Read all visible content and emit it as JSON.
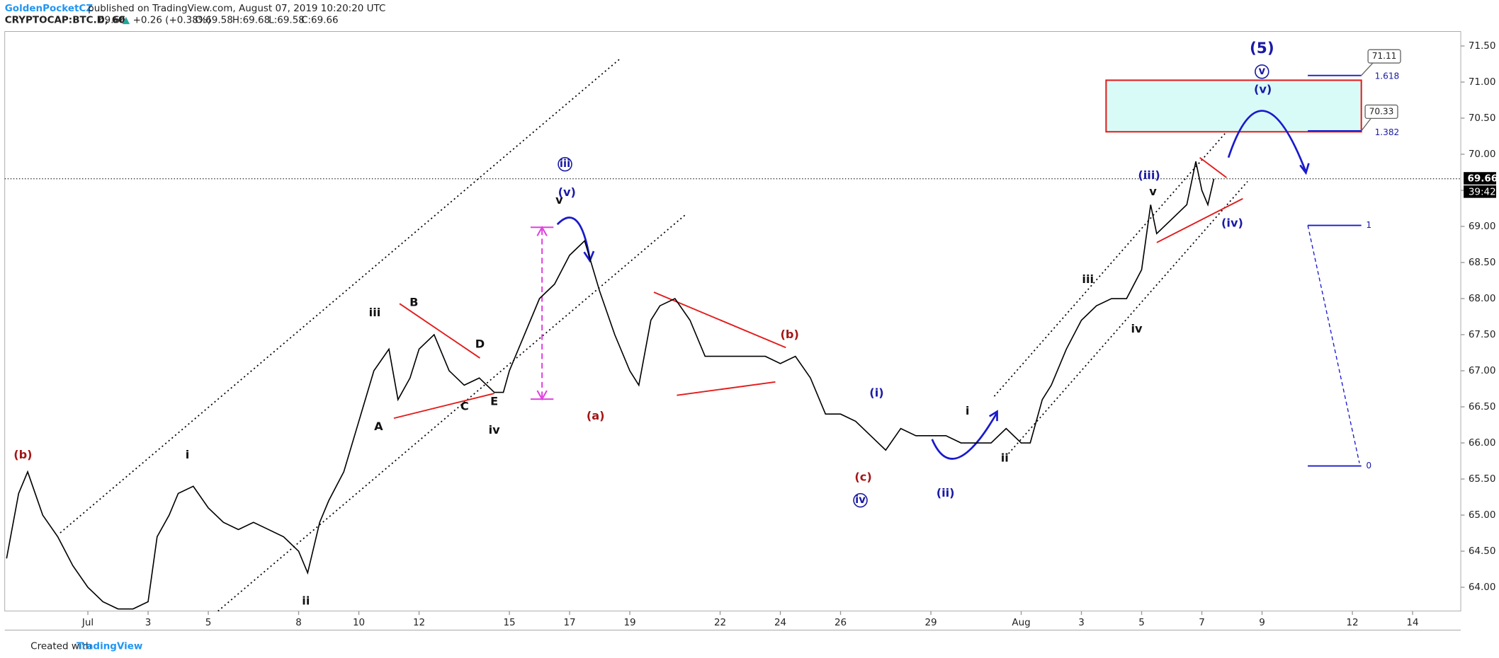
{
  "header": {
    "publisher": "GoldenPocketCZ",
    "published": "published on TradingView.com, August 07, 2019 10:20:20 UTC",
    "symbol": "CRYPTOCAP:BTC.D, 60",
    "last": "69.66",
    "arrow": "▲",
    "change": "+0.26 (+0.38%)",
    "o": "O:69.58",
    "h": "H:69.68",
    "l": "L:69.58",
    "c": "C:69.66"
  },
  "footer": {
    "created": "Created with",
    "brand": "TradingView"
  },
  "chart_data": {
    "type": "line",
    "color": "#000000",
    "grid": false,
    "x": [
      -2.7,
      -2.3,
      -2.0,
      -1.5,
      -1.0,
      -0.5,
      0,
      0.5,
      1.0,
      1.5,
      2.0,
      2.3,
      2.7,
      3.0,
      3.5,
      4.0,
      4.5,
      5.0,
      5.5,
      6.0,
      6.5,
      7.0,
      7.3,
      7.7,
      8.0,
      8.5,
      9.0,
      9.5,
      10.0,
      10.3,
      10.7,
      11.0,
      11.5,
      12.0,
      12.5,
      13.0,
      13.5,
      13.8,
      14.0,
      14.5,
      15.0,
      15.5,
      16.0,
      16.5,
      17.0,
      17.5,
      18.0,
      18.3,
      18.7,
      19.0,
      19.5,
      20.0,
      20.5,
      21.0,
      21.5,
      22.0,
      22.5,
      23.0,
      23.5,
      24.0,
      24.5,
      25.0,
      25.5,
      26.0,
      26.5,
      27.0,
      27.5,
      28.0,
      28.5,
      29.0,
      29.5,
      30.0,
      30.5,
      31.0,
      31.3,
      31.7,
      32.0,
      32.5,
      33.0,
      33.5,
      34.0,
      34.5,
      35.0,
      35.3,
      35.5,
      36.0,
      36.5,
      36.8,
      37.0,
      37.2,
      37.4
    ],
    "values": [
      64.4,
      65.3,
      65.6,
      65.0,
      64.7,
      64.3,
      64.0,
      63.8,
      63.7,
      63.7,
      63.8,
      64.7,
      65.0,
      65.3,
      65.4,
      65.1,
      64.9,
      64.8,
      64.9,
      64.8,
      64.7,
      64.5,
      64.2,
      64.9,
      65.2,
      65.6,
      66.3,
      67.0,
      67.3,
      66.6,
      66.9,
      67.3,
      67.5,
      67.0,
      66.8,
      66.9,
      66.7,
      66.7,
      67.0,
      67.5,
      68.0,
      68.2,
      68.6,
      68.8,
      68.1,
      67.5,
      67.0,
      66.8,
      67.7,
      67.9,
      68.0,
      67.7,
      67.2,
      67.2,
      67.2,
      67.2,
      67.2,
      67.1,
      67.2,
      66.9,
      66.4,
      66.4,
      66.3,
      66.1,
      65.9,
      66.2,
      66.1,
      66.1,
      66.1,
      66.0,
      66.0,
      66.0,
      66.2,
      66.0,
      66.0,
      66.6,
      66.8,
      67.3,
      67.7,
      67.9,
      68.0,
      68.0,
      68.4,
      69.3,
      68.9,
      69.1,
      69.3,
      69.9,
      69.5,
      69.3,
      69.66
    ],
    "xlim": [
      -2.76,
      45.6
    ],
    "xticks": [
      {
        "value": 0,
        "label": "Jul"
      },
      {
        "value": 2,
        "label": "3"
      },
      {
        "value": 4,
        "label": "5"
      },
      {
        "value": 7,
        "label": "8"
      },
      {
        "value": 9,
        "label": "10"
      },
      {
        "value": 11,
        "label": "12"
      },
      {
        "value": 14,
        "label": "15"
      },
      {
        "value": 16,
        "label": "17"
      },
      {
        "value": 18,
        "label": "19"
      },
      {
        "value": 21,
        "label": "22"
      },
      {
        "value": 23,
        "label": "24"
      },
      {
        "value": 25,
        "label": "26"
      },
      {
        "value": 28,
        "label": "29"
      },
      {
        "value": 31,
        "label": "Aug"
      },
      {
        "value": 33,
        "label": "3"
      },
      {
        "value": 35,
        "label": "5"
      },
      {
        "value": 37,
        "label": "7"
      },
      {
        "value": 39,
        "label": "9"
      },
      {
        "value": 42,
        "label": "12"
      },
      {
        "value": 44,
        "label": "14"
      }
    ],
    "ylim": [
      63.67,
      71.7
    ],
    "yticks": [
      {
        "value": 64,
        "label": "64.00"
      },
      {
        "value": 64.5,
        "label": "64.50"
      },
      {
        "value": 65,
        "label": "65.00"
      },
      {
        "value": 65.5,
        "label": "65.50"
      },
      {
        "value": 66,
        "label": "66.00"
      },
      {
        "value": 66.5,
        "label": "66.50"
      },
      {
        "value": 67,
        "label": "67.00"
      },
      {
        "value": 67.5,
        "label": "67.50"
      },
      {
        "value": 68,
        "label": "68.00"
      },
      {
        "value": 68.5,
        "label": "68.50"
      },
      {
        "value": 69,
        "label": "69.00"
      },
      {
        "value": 69.5,
        "label": "69.50"
      },
      {
        "value": 70,
        "label": "70.00"
      },
      {
        "value": 70.5,
        "label": "70.50"
      },
      {
        "value": 71,
        "label": "71.00"
      },
      {
        "value": 71.5,
        "label": "71.50"
      }
    ],
    "countdown": "39:42",
    "annotations": [
      "(b)",
      "i",
      "ii",
      "iii",
      "A",
      "B",
      "C",
      "D",
      "E",
      "iv",
      "iii",
      "v",
      "(v)",
      "(a)",
      "(b)",
      "(c)",
      "iv",
      "(i)",
      "(ii)",
      "i",
      "ii",
      "iii",
      "iv",
      "v",
      "(iii)",
      "(iv)",
      "(5)",
      "v",
      "(v)",
      "71.11",
      "1.618",
      "70.33",
      "1.382",
      "1",
      "0"
    ]
  }
}
